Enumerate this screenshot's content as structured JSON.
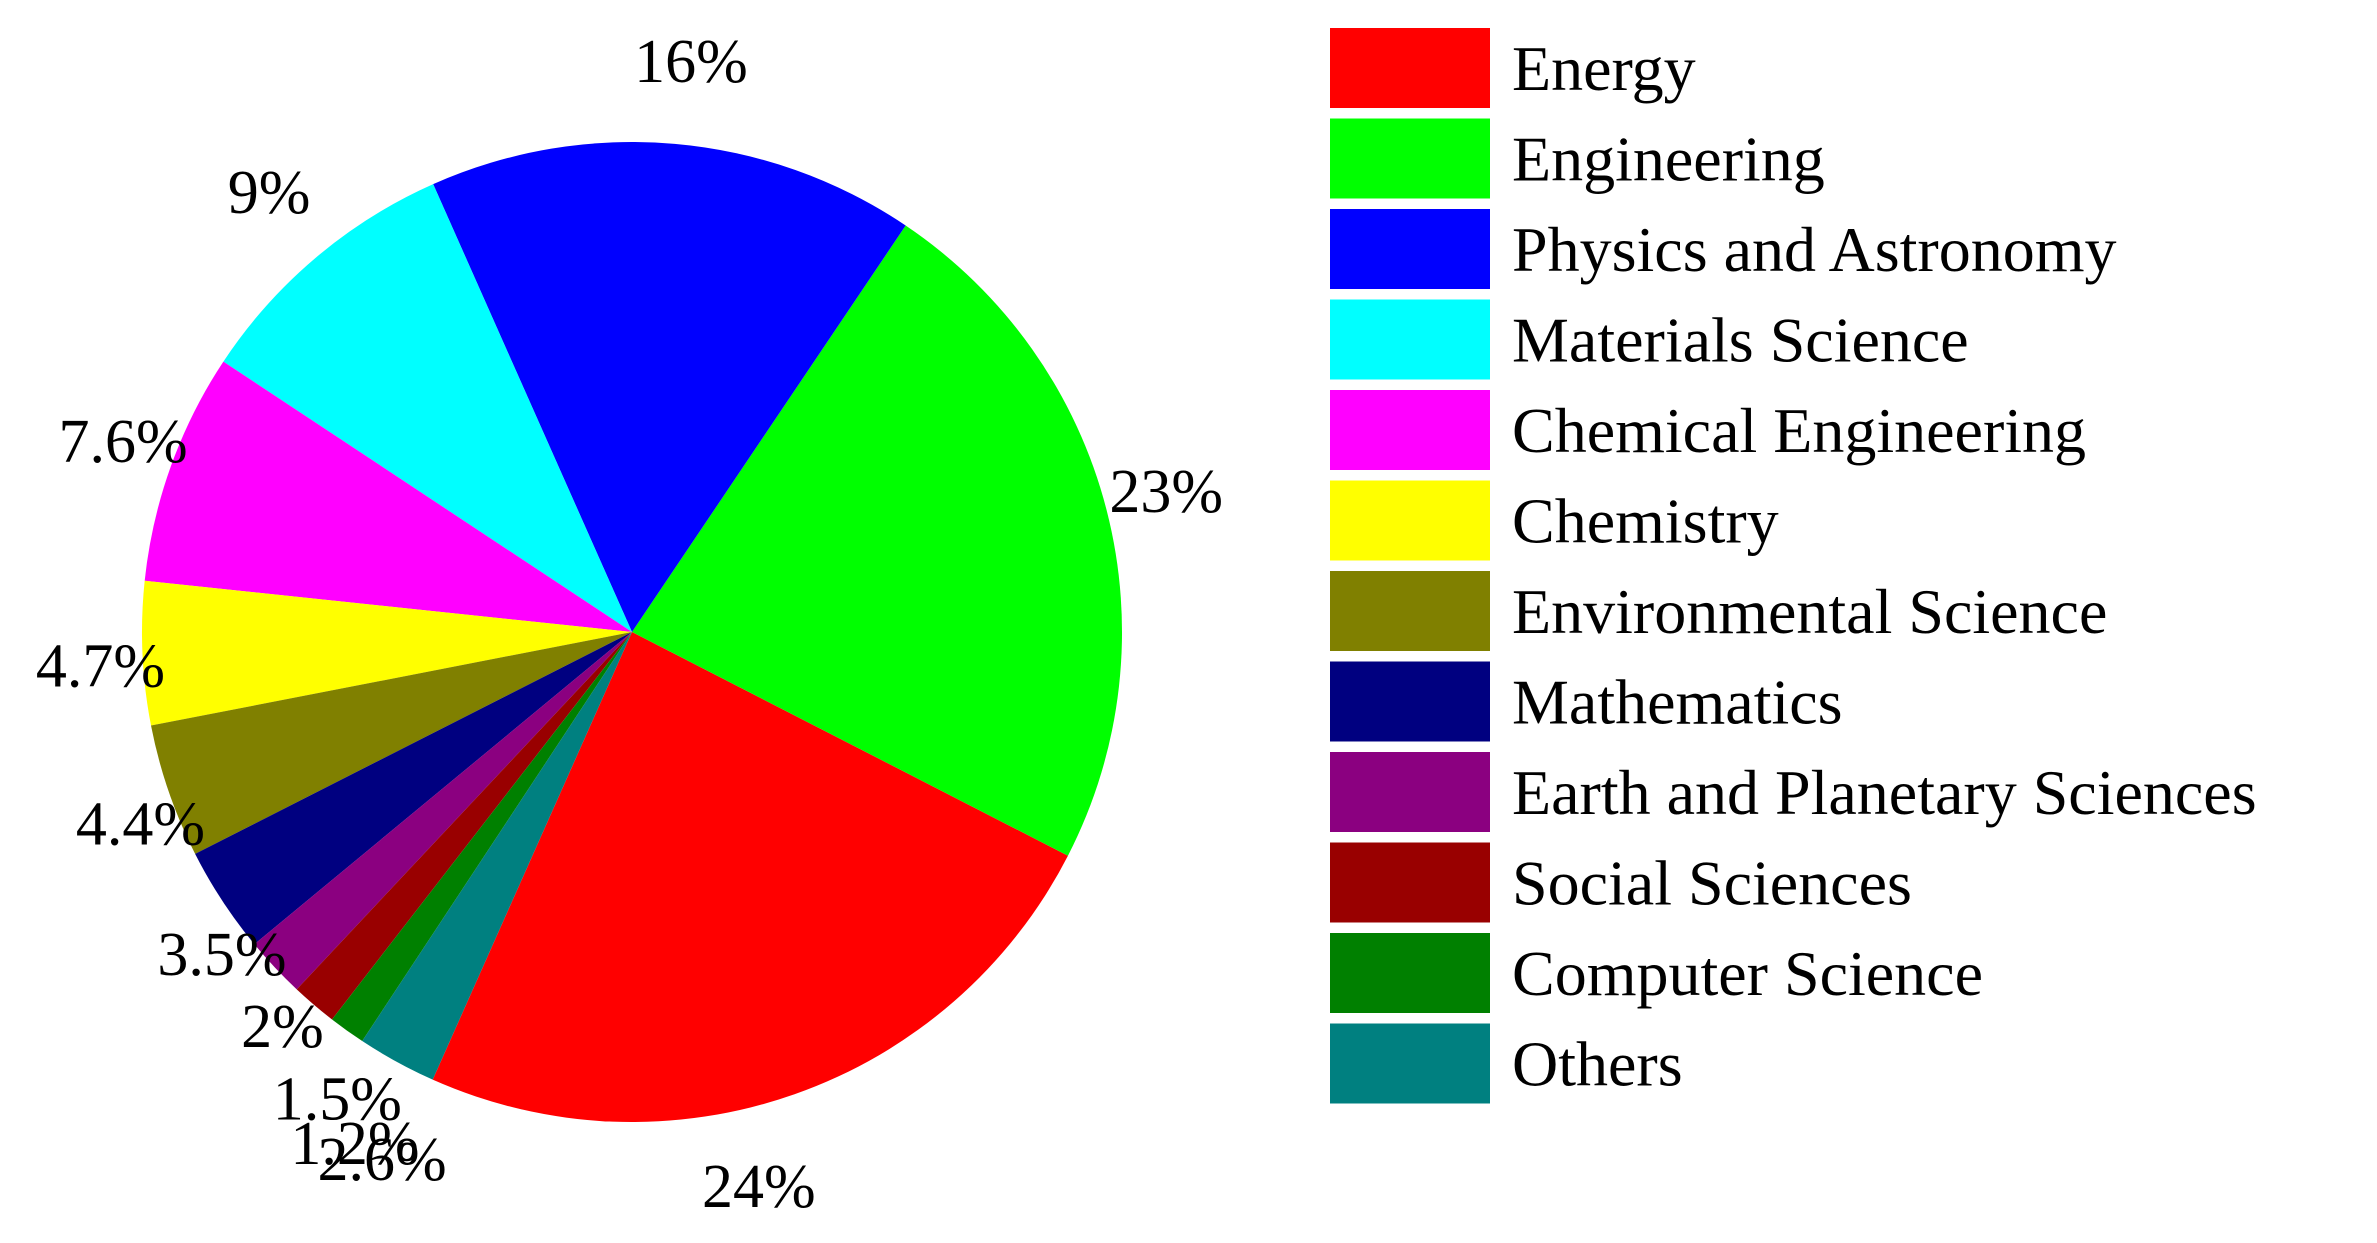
{
  "chart_data": {
    "type": "pie",
    "legend": "right",
    "slices": [
      {
        "label": "Energy",
        "value": 24,
        "text": "24%",
        "color": "#ff0000"
      },
      {
        "label": "Engineering",
        "value": 23,
        "text": "23%",
        "color": "#00ff00"
      },
      {
        "label": "Physics and Astronomy",
        "value": 16,
        "text": "16%",
        "color": "#0000ff"
      },
      {
        "label": "Materials Science",
        "value": 9,
        "text": "9%",
        "color": "#00ffff"
      },
      {
        "label": "Chemical Engineering",
        "value": 7.6,
        "text": "7.6%",
        "color": "#ff00ff"
      },
      {
        "label": "Chemistry",
        "value": 4.7,
        "text": "4.7%",
        "color": "#ffff00"
      },
      {
        "label": "Environmental Science",
        "value": 4.4,
        "text": "4.4%",
        "color": "#808000"
      },
      {
        "label": "Mathematics",
        "value": 3.5,
        "text": "3.5%",
        "color": "#000080"
      },
      {
        "label": "Earth and Planetary Sciences",
        "value": 2,
        "text": "2%",
        "color": "#8b0080"
      },
      {
        "label": "Social Sciences",
        "value": 1.5,
        "text": "1.5%",
        "color": "#990000"
      },
      {
        "label": "Computer Science",
        "value": 1.2,
        "text": "1.2%",
        "color": "#008000"
      },
      {
        "label": "Others",
        "value": 2.6,
        "text": "2.6%",
        "color": "#008080"
      }
    ]
  }
}
